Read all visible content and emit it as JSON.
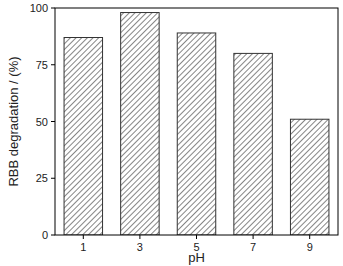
{
  "chart_data": {
    "type": "bar",
    "y_label": "RBB degradation / (%)",
    "x_label": "pH",
    "categories": [
      "1",
      "3",
      "5",
      "7",
      "9"
    ],
    "values": [
      87,
      98,
      89,
      80,
      51
    ],
    "color": "#333333",
    "ylim": [
      0,
      100
    ],
    "yticks": [
      0,
      25,
      50,
      75,
      100
    ],
    "grid": false
  }
}
